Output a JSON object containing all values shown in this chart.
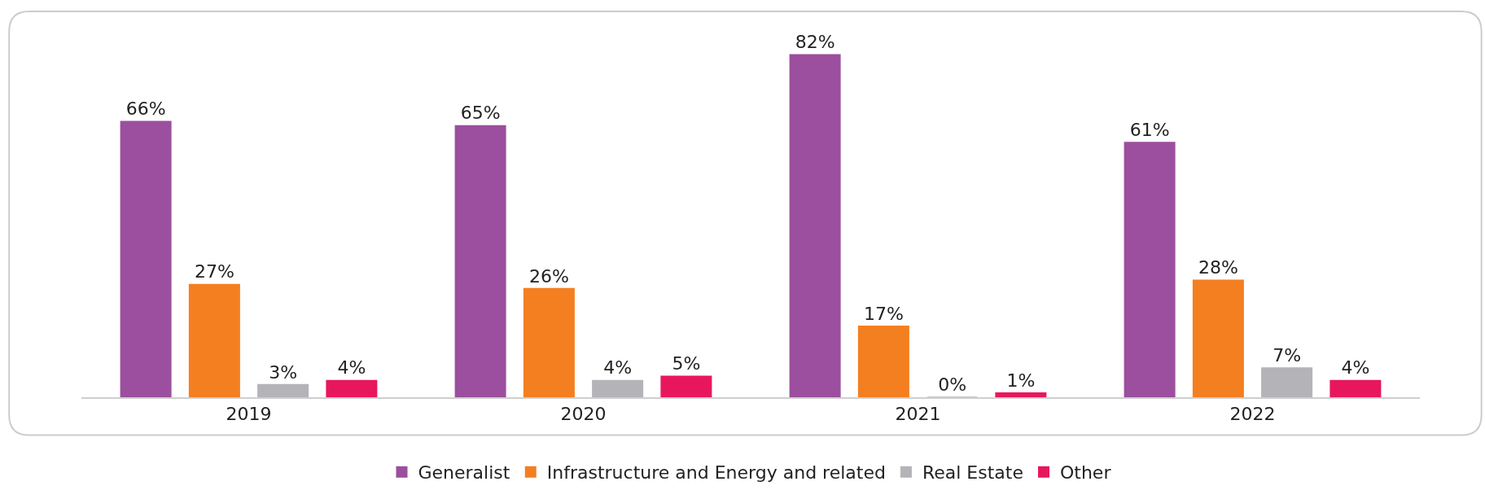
{
  "chart_data": {
    "type": "bar",
    "categories": [
      "2019",
      "2020",
      "2021",
      "2022"
    ],
    "series": [
      {
        "name": "Generalist",
        "color": "#9b4f9e",
        "values": [
          66,
          65,
          82,
          61
        ],
        "value_labels": [
          "66%",
          "65%",
          "82%",
          "61%"
        ]
      },
      {
        "name": "Infrastructure and Energy and related",
        "color": "#f47f20",
        "values": [
          27,
          26,
          17,
          28
        ],
        "value_labels": [
          "27%",
          "26%",
          "17%",
          "28%"
        ]
      },
      {
        "name": "Real Estate",
        "color": "#b4b4b8",
        "values": [
          3,
          4,
          0,
          7
        ],
        "value_labels": [
          "3%",
          "4%",
          "0%",
          "7%"
        ]
      },
      {
        "name": "Other",
        "color": "#e8175d",
        "values": [
          4,
          5,
          1,
          4
        ],
        "value_labels": [
          "4%",
          "5%",
          "1%",
          "4%"
        ]
      }
    ],
    "legend": "bottom",
    "tick_labels": "x"
  }
}
